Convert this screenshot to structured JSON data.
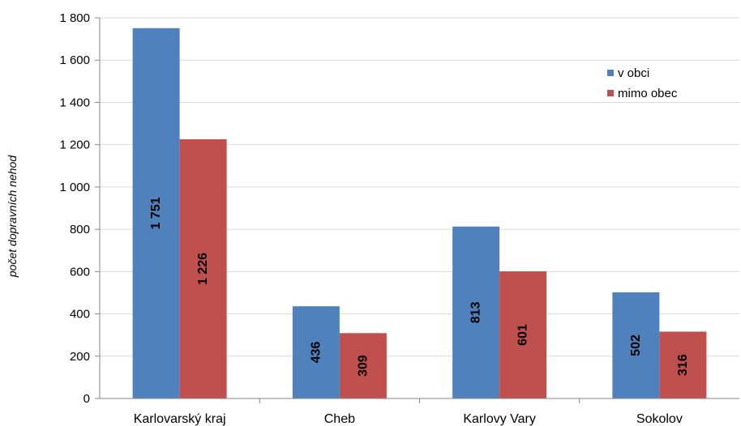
{
  "chart_data": {
    "type": "bar",
    "categories": [
      "Karlovarský kraj",
      "Cheb",
      "Karlovy Vary",
      "Sokolov"
    ],
    "series": [
      {
        "name": "v obci",
        "values": [
          1751,
          436,
          813,
          502
        ],
        "labels": [
          "1 751",
          "436",
          "813",
          "502"
        ],
        "color": "#4f81bd"
      },
      {
        "name": "mimo obec",
        "values": [
          1226,
          309,
          601,
          316
        ],
        "labels": [
          "1 226",
          "309",
          "601",
          "316"
        ],
        "color": "#c0504d"
      }
    ],
    "ylabel": "počet dopravních nehod",
    "ylim": [
      0,
      1800
    ],
    "yticks": [
      0,
      200,
      400,
      600,
      800,
      1000,
      1200,
      1400,
      1600,
      1800
    ],
    "ytick_labels": [
      "0",
      "200",
      "400",
      "600",
      "800",
      "1 000",
      "1 200",
      "1 400",
      "1 600",
      "1 800"
    ],
    "grid": true,
    "legend_position": "top-right"
  }
}
